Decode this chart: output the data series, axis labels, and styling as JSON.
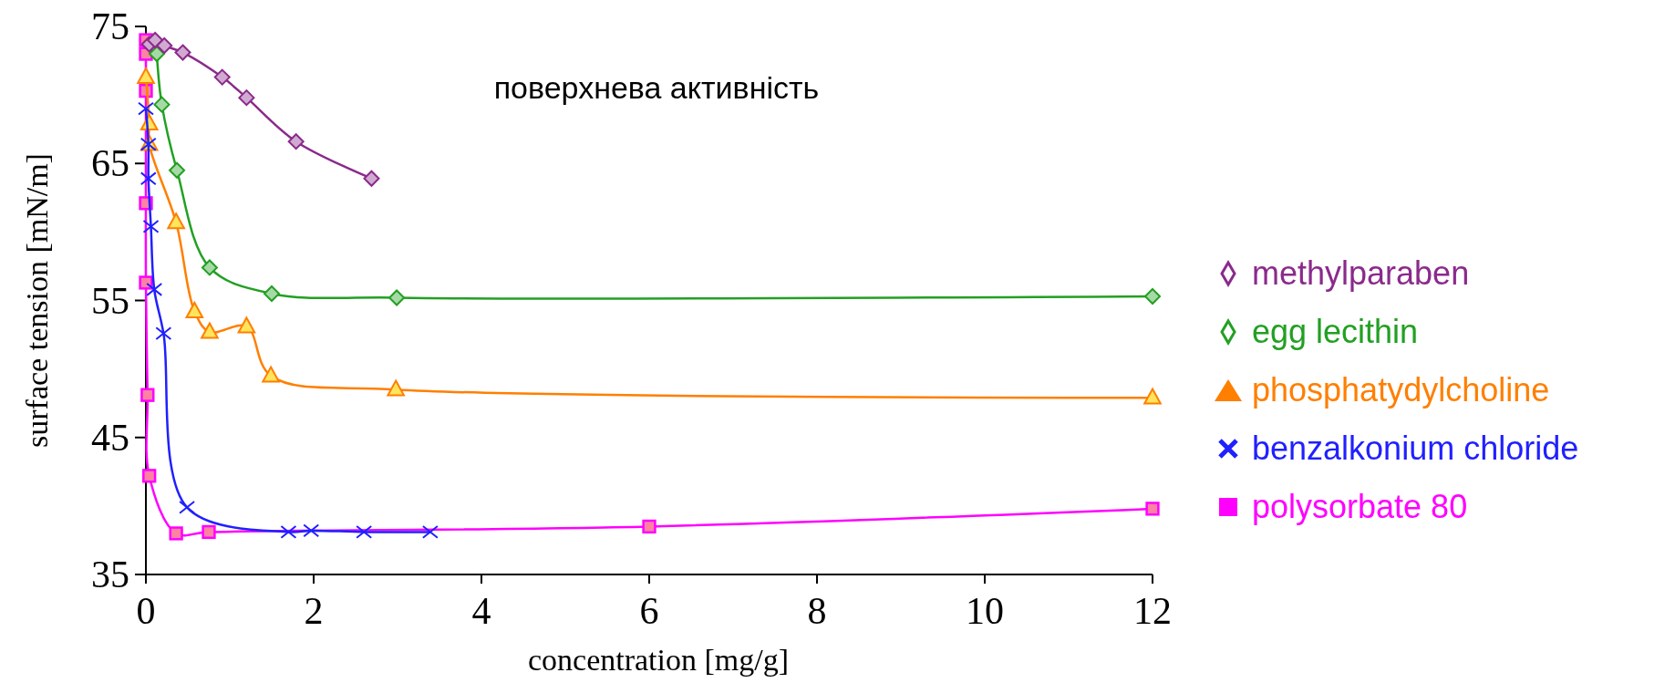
{
  "chart_data": {
    "type": "line",
    "title": "поверхнева активність",
    "xlabel": "concentration [mg/g]",
    "ylabel": "surface tension [mN/m]",
    "xlim": [
      0,
      12
    ],
    "xticks": [
      0,
      2,
      4,
      6,
      8,
      10,
      12
    ],
    "ylim": [
      35,
      75
    ],
    "yticks": [
      35,
      45,
      55,
      65,
      75
    ],
    "grid": false,
    "legend": "right",
    "line_style": "solid",
    "series": [
      {
        "name": "methylparaben",
        "color": "#8b2a8b",
        "marker": "diamond",
        "x": [
          0.04,
          0.11,
          0.22,
          0.44,
          0.91,
          1.2,
          1.79,
          2.69
        ],
        "values": [
          73.7,
          74.0,
          73.6,
          73.1,
          71.3,
          69.8,
          66.6,
          63.9
        ]
      },
      {
        "name": "egg lecithin",
        "color": "#22a022",
        "marker": "diamond",
        "x": [
          0.13,
          0.19,
          0.37,
          0.76,
          1.5,
          2.99,
          12
        ],
        "values": [
          73.0,
          69.3,
          64.5,
          57.4,
          55.5,
          55.2,
          55.3
        ]
      },
      {
        "name": "phosphatydylcholine",
        "color": "#ff7f00",
        "marker": "triangle",
        "x": [
          0,
          0.04,
          0.04,
          0.36,
          0.58,
          0.76,
          1.2,
          1.49,
          2.98,
          12
        ],
        "values": [
          71.3,
          67.9,
          66.4,
          60.7,
          54.2,
          52.7,
          53.1,
          49.5,
          48.5,
          47.9
        ]
      },
      {
        "name": "benzalkonium chloride",
        "color": "#2020ff",
        "marker": "cross",
        "x": [
          0,
          0.03,
          0.03,
          0.06,
          0.1,
          0.21,
          0.49,
          1.7,
          1.97,
          2.6,
          3.39
        ],
        "values": [
          69.0,
          66.4,
          63.9,
          60.4,
          55.8,
          52.6,
          39.9,
          38.1,
          38.2,
          38.1,
          38.1
        ]
      },
      {
        "name": "polysorbate 80",
        "color": "#ff00ff",
        "marker": "square",
        "x": [
          0,
          0,
          0,
          0,
          0,
          0.02,
          0.04,
          0.36,
          0.75,
          6,
          12
        ],
        "values": [
          74.0,
          73.0,
          70.3,
          62.1,
          56.3,
          48.1,
          42.2,
          38.0,
          38.1,
          38.5,
          39.8
        ]
      }
    ]
  }
}
